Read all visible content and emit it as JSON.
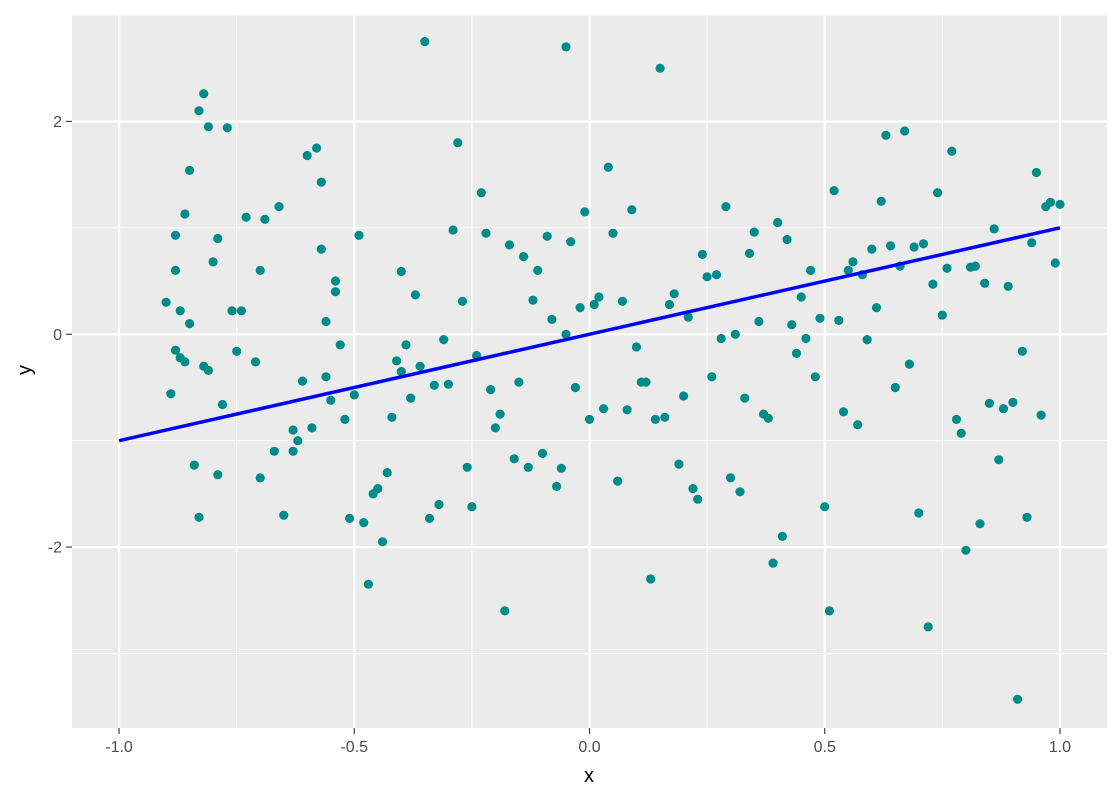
{
  "chart_data": {
    "type": "scatter",
    "title": "",
    "xlabel": "x",
    "ylabel": "y",
    "xlim": [
      -1.1,
      1.1
    ],
    "ylim": [
      -3.7,
      3.0
    ],
    "x_ticks": [
      -1.0,
      -0.5,
      0.0,
      0.5,
      1.0
    ],
    "x_tick_labels": [
      "-1.0",
      "-0.5",
      "0.0",
      "0.5",
      "1.0"
    ],
    "y_ticks": [
      -2,
      0,
      2
    ],
    "y_tick_labels": [
      "-2",
      "0",
      "2"
    ],
    "grid": true,
    "legend": "none",
    "colors": {
      "panel": "#ebebeb",
      "grid": "#ffffff",
      "points": "#008b8b",
      "line": "#0000ff",
      "tick": "#333333"
    },
    "line": {
      "x": [
        -1.0,
        1.0
      ],
      "y": [
        -1.0,
        1.0
      ]
    },
    "points": [
      [
        -0.9,
        0.3
      ],
      [
        -0.89,
        -0.56
      ],
      [
        -0.88,
        0.93
      ],
      [
        -0.88,
        -0.15
      ],
      [
        -0.88,
        0.6
      ],
      [
        -0.87,
        -0.22
      ],
      [
        -0.87,
        0.22
      ],
      [
        -0.86,
        1.13
      ],
      [
        -0.86,
        -0.26
      ],
      [
        -0.85,
        0.1
      ],
      [
        -0.85,
        1.54
      ],
      [
        -0.84,
        -1.23
      ],
      [
        -0.83,
        -1.72
      ],
      [
        -0.83,
        2.1
      ],
      [
        -0.82,
        2.26
      ],
      [
        -0.82,
        -0.3
      ],
      [
        -0.81,
        1.95
      ],
      [
        -0.81,
        -0.34
      ],
      [
        -0.8,
        0.68
      ],
      [
        -0.79,
        -1.32
      ],
      [
        -0.79,
        0.9
      ],
      [
        -0.78,
        -0.66
      ],
      [
        -0.77,
        1.94
      ],
      [
        -0.76,
        0.22
      ],
      [
        -0.75,
        -0.16
      ],
      [
        -0.74,
        0.22
      ],
      [
        -0.73,
        1.1
      ],
      [
        -0.71,
        -0.26
      ],
      [
        -0.7,
        -1.35
      ],
      [
        -0.7,
        0.6
      ],
      [
        -0.69,
        1.08
      ],
      [
        -0.67,
        -1.1
      ],
      [
        -0.66,
        1.2
      ],
      [
        -0.65,
        -1.7
      ],
      [
        -0.63,
        -0.9
      ],
      [
        -0.63,
        -1.1
      ],
      [
        -0.62,
        -1.0
      ],
      [
        -0.61,
        -0.44
      ],
      [
        -0.6,
        1.68
      ],
      [
        -0.59,
        -0.88
      ],
      [
        -0.58,
        1.75
      ],
      [
        -0.57,
        0.8
      ],
      [
        -0.57,
        1.43
      ],
      [
        -0.56,
        -0.4
      ],
      [
        -0.56,
        0.12
      ],
      [
        -0.55,
        -0.62
      ],
      [
        -0.54,
        0.5
      ],
      [
        -0.54,
        0.4
      ],
      [
        -0.53,
        -0.1
      ],
      [
        -0.52,
        -0.8
      ],
      [
        -0.51,
        -1.73
      ],
      [
        -0.5,
        -0.57
      ],
      [
        -0.49,
        0.93
      ],
      [
        -0.48,
        -1.77
      ],
      [
        -0.47,
        -2.35
      ],
      [
        -0.46,
        -1.5
      ],
      [
        -0.45,
        -1.45
      ],
      [
        -0.44,
        -1.95
      ],
      [
        -0.43,
        -1.3
      ],
      [
        -0.42,
        -0.78
      ],
      [
        -0.41,
        -0.25
      ],
      [
        -0.4,
        -0.35
      ],
      [
        -0.4,
        0.59
      ],
      [
        -0.39,
        -0.1
      ],
      [
        -0.38,
        -0.6
      ],
      [
        -0.37,
        0.37
      ],
      [
        -0.36,
        -0.3
      ],
      [
        -0.35,
        2.75
      ],
      [
        -0.34,
        -1.73
      ],
      [
        -0.33,
        -0.48
      ],
      [
        -0.32,
        -1.6
      ],
      [
        -0.31,
        -0.05
      ],
      [
        -0.3,
        -0.47
      ],
      [
        -0.29,
        0.98
      ],
      [
        -0.28,
        1.8
      ],
      [
        -0.27,
        0.31
      ],
      [
        -0.26,
        -1.25
      ],
      [
        -0.25,
        -1.62
      ],
      [
        -0.24,
        -0.2
      ],
      [
        -0.23,
        1.33
      ],
      [
        -0.22,
        0.95
      ],
      [
        -0.21,
        -0.52
      ],
      [
        -0.2,
        -0.88
      ],
      [
        -0.19,
        -0.75
      ],
      [
        -0.18,
        -2.6
      ],
      [
        -0.17,
        0.84
      ],
      [
        -0.16,
        -1.17
      ],
      [
        -0.15,
        -0.45
      ],
      [
        -0.14,
        0.73
      ],
      [
        -0.13,
        -1.25
      ],
      [
        -0.12,
        0.32
      ],
      [
        -0.11,
        0.6
      ],
      [
        -0.1,
        -1.12
      ],
      [
        -0.09,
        0.92
      ],
      [
        -0.08,
        0.14
      ],
      [
        -0.07,
        -1.43
      ],
      [
        -0.06,
        -1.26
      ],
      [
        -0.05,
        2.7
      ],
      [
        -0.05,
        0.0
      ],
      [
        -0.04,
        0.87
      ],
      [
        -0.03,
        -0.5
      ],
      [
        -0.02,
        0.25
      ],
      [
        -0.01,
        1.15
      ],
      [
        0.0,
        -0.8
      ],
      [
        0.01,
        0.28
      ],
      [
        0.02,
        0.35
      ],
      [
        0.03,
        -0.7
      ],
      [
        0.04,
        1.57
      ],
      [
        0.05,
        0.95
      ],
      [
        0.06,
        -1.38
      ],
      [
        0.07,
        0.31
      ],
      [
        0.08,
        -0.71
      ],
      [
        0.09,
        1.17
      ],
      [
        0.1,
        -0.12
      ],
      [
        0.11,
        -0.45
      ],
      [
        0.12,
        -0.45
      ],
      [
        0.13,
        -2.3
      ],
      [
        0.14,
        -0.8
      ],
      [
        0.15,
        2.5
      ],
      [
        0.16,
        -0.78
      ],
      [
        0.17,
        0.28
      ],
      [
        0.18,
        0.38
      ],
      [
        0.19,
        -1.22
      ],
      [
        0.2,
        -0.58
      ],
      [
        0.21,
        0.16
      ],
      [
        0.22,
        -1.45
      ],
      [
        0.23,
        -1.55
      ],
      [
        0.24,
        0.75
      ],
      [
        0.25,
        0.54
      ],
      [
        0.26,
        -0.4
      ],
      [
        0.27,
        0.56
      ],
      [
        0.28,
        -0.04
      ],
      [
        0.29,
        1.2
      ],
      [
        0.3,
        -1.35
      ],
      [
        0.31,
        0.0
      ],
      [
        0.32,
        -1.48
      ],
      [
        0.33,
        -0.6
      ],
      [
        0.34,
        0.76
      ],
      [
        0.35,
        0.96
      ],
      [
        0.36,
        0.12
      ],
      [
        0.37,
        -0.75
      ],
      [
        0.38,
        -0.79
      ],
      [
        0.39,
        -2.15
      ],
      [
        0.4,
        1.05
      ],
      [
        0.41,
        -1.9
      ],
      [
        0.42,
        0.89
      ],
      [
        0.43,
        0.09
      ],
      [
        0.44,
        -0.18
      ],
      [
        0.45,
        0.35
      ],
      [
        0.46,
        -0.04
      ],
      [
        0.47,
        0.6
      ],
      [
        0.48,
        -0.4
      ],
      [
        0.49,
        0.15
      ],
      [
        0.5,
        -1.62
      ],
      [
        0.51,
        -2.6
      ],
      [
        0.52,
        1.35
      ],
      [
        0.53,
        0.13
      ],
      [
        0.54,
        -0.73
      ],
      [
        0.55,
        0.6
      ],
      [
        0.56,
        0.68
      ],
      [
        0.57,
        -0.85
      ],
      [
        0.58,
        0.56
      ],
      [
        0.59,
        -0.05
      ],
      [
        0.6,
        0.8
      ],
      [
        0.61,
        0.25
      ],
      [
        0.62,
        1.25
      ],
      [
        0.63,
        1.87
      ],
      [
        0.64,
        0.83
      ],
      [
        0.65,
        -0.5
      ],
      [
        0.66,
        0.64
      ],
      [
        0.67,
        1.91
      ],
      [
        0.68,
        -0.28
      ],
      [
        0.69,
        0.82
      ],
      [
        0.7,
        -1.68
      ],
      [
        0.71,
        0.85
      ],
      [
        0.72,
        -2.75
      ],
      [
        0.73,
        0.47
      ],
      [
        0.74,
        1.33
      ],
      [
        0.75,
        0.18
      ],
      [
        0.76,
        0.62
      ],
      [
        0.77,
        1.72
      ],
      [
        0.78,
        -0.8
      ],
      [
        0.79,
        -0.93
      ],
      [
        0.8,
        -2.03
      ],
      [
        0.81,
        0.63
      ],
      [
        0.82,
        0.64
      ],
      [
        0.83,
        -1.78
      ],
      [
        0.84,
        0.48
      ],
      [
        0.85,
        -0.65
      ],
      [
        0.86,
        0.99
      ],
      [
        0.87,
        -1.18
      ],
      [
        0.88,
        -0.7
      ],
      [
        0.89,
        0.45
      ],
      [
        0.9,
        -0.64
      ],
      [
        0.91,
        -3.43
      ],
      [
        0.92,
        -0.16
      ],
      [
        0.93,
        -1.72
      ],
      [
        0.94,
        0.86
      ],
      [
        0.95,
        1.52
      ],
      [
        0.96,
        -0.76
      ],
      [
        0.97,
        1.2
      ],
      [
        0.98,
        1.24
      ],
      [
        0.99,
        0.67
      ],
      [
        1.0,
        1.22
      ]
    ]
  }
}
